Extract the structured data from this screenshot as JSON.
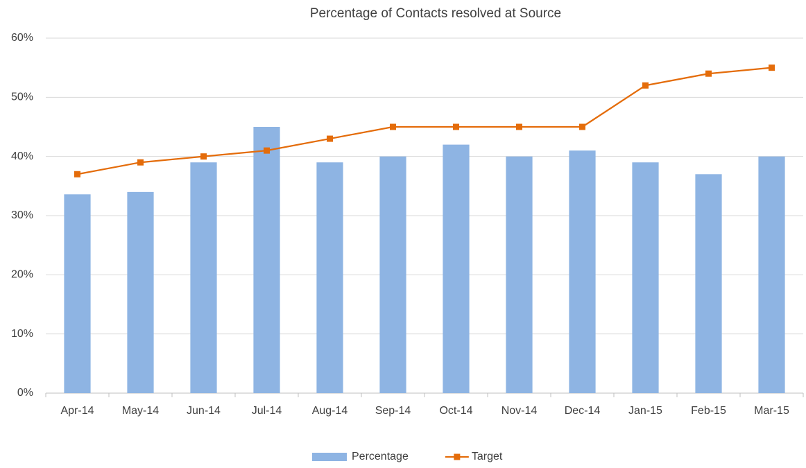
{
  "chart_data": {
    "type": "bar",
    "title": "Percentage of Contacts resolved at Source",
    "categories": [
      "Apr-14",
      "May-14",
      "Jun-14",
      "Jul-14",
      "Aug-14",
      "Sep-14",
      "Oct-14",
      "Nov-14",
      "Dec-14",
      "Jan-15",
      "Feb-15",
      "Mar-15"
    ],
    "series": [
      {
        "name": "Percentage",
        "type": "bar",
        "color": "#8eb4e3",
        "values": [
          33.6,
          34,
          39,
          45,
          39,
          40,
          42,
          40,
          41,
          39,
          37,
          40
        ]
      },
      {
        "name": "Target",
        "type": "line",
        "color": "#e46c0a",
        "values": [
          37,
          39,
          40,
          41,
          43,
          45,
          45,
          45,
          45,
          52,
          54,
          55
        ]
      }
    ],
    "ylim": [
      0,
      60
    ],
    "yticks": [
      {
        "value": 0,
        "label": "0%"
      },
      {
        "value": 10,
        "label": "10%"
      },
      {
        "value": 20,
        "label": "20%"
      },
      {
        "value": 30,
        "label": "30%"
      },
      {
        "value": 40,
        "label": "40%"
      },
      {
        "value": 50,
        "label": "50%"
      },
      {
        "value": 60,
        "label": "60%"
      }
    ],
    "grid": true,
    "legend": "bottom"
  }
}
